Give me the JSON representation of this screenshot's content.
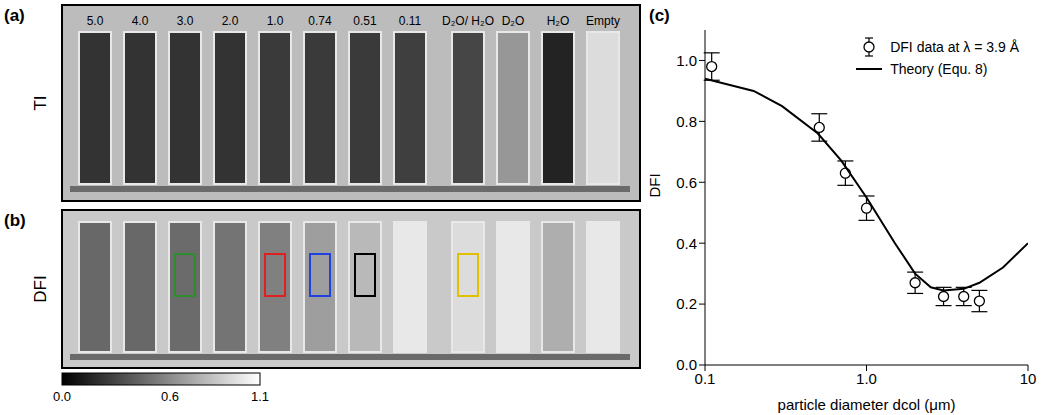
{
  "images": {
    "columns": [
      "5.0",
      "4.0",
      "3.0",
      "2.0",
      "1.0",
      "0.74",
      "0.51",
      "0.11",
      "D₂O/ H₂O",
      "D₂O",
      "H₂O",
      "Empty"
    ],
    "panels": [
      {
        "letter": "(a)",
        "label": "TI",
        "values": [
          0.22,
          0.22,
          0.22,
          0.22,
          0.25,
          0.25,
          0.25,
          0.27,
          0.3,
          0.65,
          0.15,
          0.95
        ]
      },
      {
        "letter": "(b)",
        "label": "DFI",
        "values": [
          0.45,
          0.45,
          0.46,
          0.5,
          0.55,
          0.68,
          0.8,
          1.0,
          0.95,
          1.0,
          0.75,
          1.0
        ],
        "roi_colors": [
          null,
          null,
          "#2e8b2e",
          null,
          "#e02020",
          "#2040e0",
          "#000000",
          null,
          "#e0c000",
          null,
          null,
          null
        ]
      }
    ],
    "colorbar": {
      "range": [
        0,
        1.1
      ],
      "ticks": [
        {
          "value": 0,
          "label": "0.0"
        },
        0.6,
        1.1
      ]
    }
  },
  "chart_data": {
    "type": "scatter",
    "panel_label": "(c)",
    "xlabel": "particle diameter dcol (μm)",
    "ylabel": "DFI",
    "log": "x",
    "legend": "upper right",
    "xlim": [
      0.1,
      10
    ],
    "ylim": [
      0,
      1.1
    ],
    "xticks": [
      0.1,
      {
        "value": 1,
        "label": "1.0"
      },
      10
    ],
    "yticks": [
      {
        "value": 0,
        "label": "0.0"
      },
      0.2,
      0.4,
      0.6,
      0.8,
      {
        "value": 1,
        "label": "1.0"
      }
    ],
    "series": [
      {
        "name": "DFI data at λ = 3.9 Å",
        "type": "scatter",
        "marker": "circle",
        "color": "#000000",
        "x": [
          0.11,
          0.51,
          0.74,
          1.0,
          2.0,
          3.0,
          4.0,
          5.0
        ],
        "values": [
          0.98,
          0.78,
          0.63,
          0.515,
          0.27,
          0.225,
          0.225,
          0.21
        ],
        "errors": [
          0.045,
          0.045,
          0.04,
          0.04,
          0.035,
          0.03,
          0.03,
          0.035
        ]
      },
      {
        "name": "Theory (Equ. 8)",
        "type": "line",
        "line_style": "solid",
        "color": "#000000",
        "x": [
          0.1,
          0.2,
          0.3,
          0.5,
          0.7,
          1.0,
          1.5,
          2.0,
          2.5,
          3.0,
          4.0,
          5.0,
          7.0,
          10.0
        ],
        "values": [
          0.94,
          0.9,
          0.85,
          0.76,
          0.67,
          0.55,
          0.4,
          0.3,
          0.255,
          0.245,
          0.25,
          0.27,
          0.32,
          0.4
        ]
      }
    ]
  }
}
